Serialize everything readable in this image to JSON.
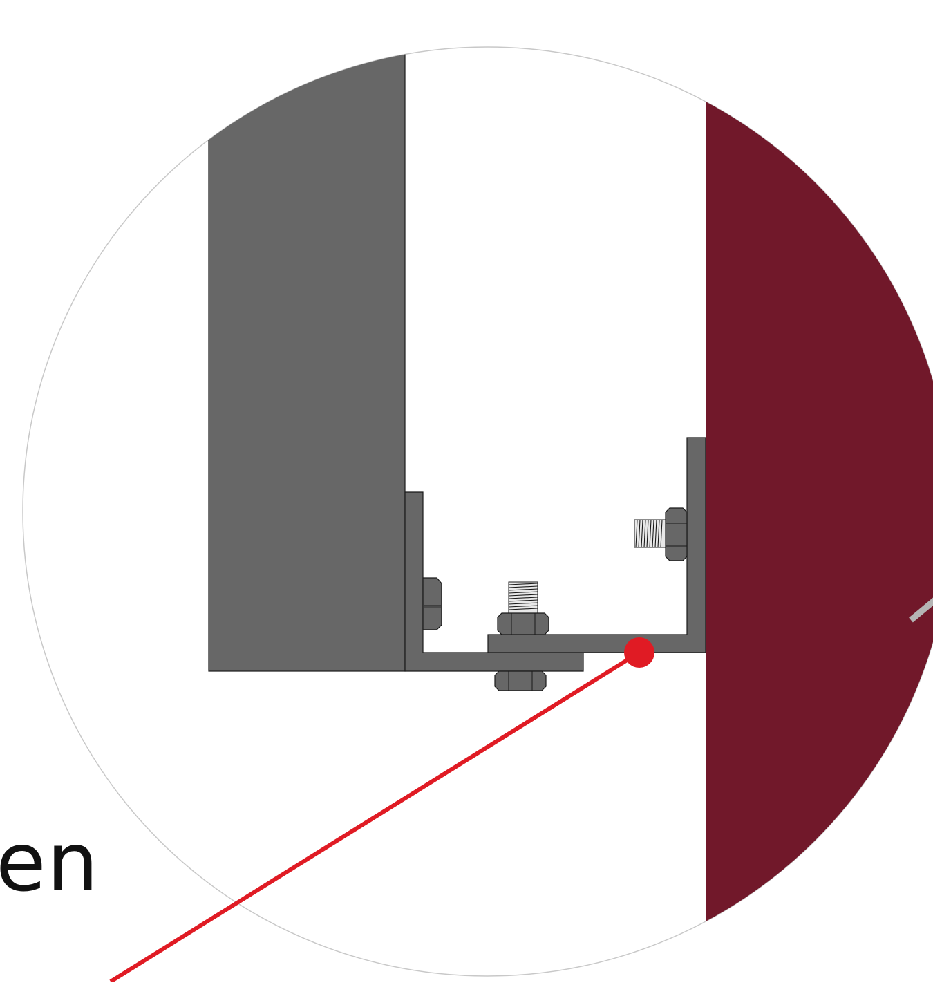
{
  "callout_text": "en",
  "colors": {
    "background": "#ffffff",
    "circle_outline": "#c8c8c8",
    "steel": "#676767",
    "steel_outline": "#1a1a1a",
    "wall": "#71182a",
    "callout_line": "#e01b24",
    "callout_dot": "#e01b24",
    "rod": "#b5b5b5"
  },
  "components": {
    "left_beam": "steel-beam",
    "right_wall": "wall-section",
    "bracket_left": "angle-bracket",
    "bracket_right": "angle-bracket",
    "fasteners": [
      "hex-bolt-vertical",
      "hex-nut-bottom",
      "hex-bolt-horizontal",
      "hex-bolt-small-left"
    ]
  }
}
